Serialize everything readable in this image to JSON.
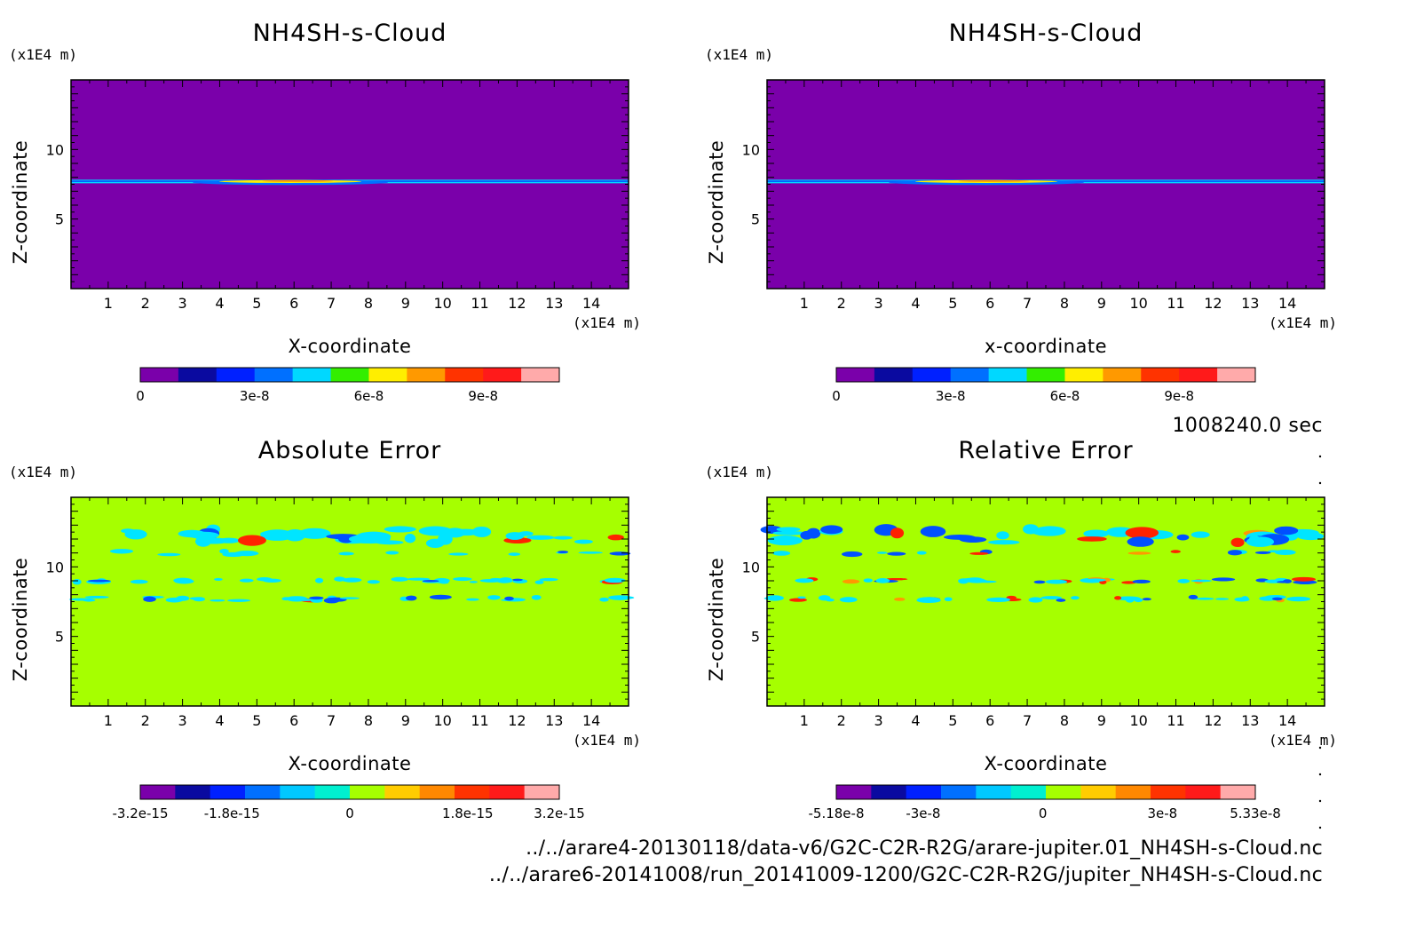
{
  "time_label": "1008240.0 sec",
  "footer": {
    "line1": "../../arare4-20130118/data-v6/G2C-C2R-R2G/arare-jupiter.01_NH4SH-s-Cloud.nc",
    "line2": "../../arare6-20141008/run_20141009-1200/G2C-C2R-R2G/jupiter_NH4SH-s-Cloud.nc"
  },
  "colors": {
    "base_purple": "#7a00aa",
    "base_green": "#a6ff00",
    "cyan": "#00e5ff",
    "blue": "#0050ff",
    "red": "#ff2200",
    "orange": "#ff9900"
  },
  "chart_data": [
    {
      "type": "heatmap",
      "title": "NH4SH-s-Cloud",
      "xlabel": "X-coordinate",
      "ylabel": "Z-coordinate",
      "x_unit": "(x1E4 m)",
      "y_unit": "(x1E4 m)",
      "xlim": [
        0,
        15
      ],
      "ylim": [
        0,
        15
      ],
      "x_ticks": [
        1,
        2,
        3,
        4,
        5,
        6,
        7,
        8,
        9,
        10,
        11,
        12,
        13,
        14
      ],
      "y_ticks": [
        5,
        10
      ],
      "layer_z": 7.7,
      "colorbar": {
        "min": 0,
        "max": 1.1e-07,
        "colors": [
          "#7a00aa",
          "#0a0aa0",
          "#0020ff",
          "#0070ff",
          "#00d8ff",
          "#33ee00",
          "#ffee00",
          "#ff9900",
          "#ff3300",
          "#ff1a1a",
          "#ffaaaa"
        ],
        "labels": [
          "0",
          "3e-8",
          "6e-8",
          "9e-8"
        ],
        "label_values": [
          0,
          3e-08,
          6e-08,
          9e-08
        ]
      }
    },
    {
      "type": "heatmap",
      "title": "NH4SH-s-Cloud",
      "xlabel": "x-coordinate",
      "ylabel": "Z-coordinate",
      "x_unit": "(x1E4 m)",
      "y_unit": "(x1E4 m)",
      "xlim": [
        0,
        15
      ],
      "ylim": [
        0,
        15
      ],
      "x_ticks": [
        1,
        2,
        3,
        4,
        5,
        6,
        7,
        8,
        9,
        10,
        11,
        12,
        13,
        14
      ],
      "y_ticks": [
        5,
        10
      ],
      "layer_z": 7.7,
      "colorbar": {
        "min": 0,
        "max": 1.1e-07,
        "colors": [
          "#7a00aa",
          "#0a0aa0",
          "#0020ff",
          "#0070ff",
          "#00d8ff",
          "#33ee00",
          "#ffee00",
          "#ff9900",
          "#ff3300",
          "#ff1a1a",
          "#ffaaaa"
        ],
        "labels": [
          "0",
          "3e-8",
          "6e-8",
          "9e-8"
        ],
        "label_values": [
          0,
          3e-08,
          6e-08,
          9e-08
        ]
      }
    },
    {
      "type": "heatmap",
      "title": "Absolute Error",
      "xlabel": "X-coordinate",
      "ylabel": "Z-coordinate",
      "x_unit": "(x1E4 m)",
      "y_unit": "(x1E4 m)",
      "xlim": [
        0,
        15
      ],
      "ylim": [
        0,
        15
      ],
      "x_ticks": [
        1,
        2,
        3,
        4,
        5,
        6,
        7,
        8,
        9,
        10,
        11,
        12,
        13,
        14
      ],
      "y_ticks": [
        5,
        10
      ],
      "error_bands_z": [
        12.2,
        11.0,
        9.0,
        7.7
      ],
      "colorbar": {
        "min": -3.2e-15,
        "max": 3.2e-15,
        "colors": [
          "#7a00aa",
          "#0a0aa0",
          "#0020ff",
          "#0070ff",
          "#00c8ff",
          "#00f0d0",
          "#a6ff00",
          "#ffcc00",
          "#ff8800",
          "#ff3300",
          "#ff1a1a",
          "#ffaaaa"
        ],
        "labels": [
          "-3.2e-15",
          "-1.8e-15",
          "0",
          "1.8e-15",
          "3.2e-15"
        ],
        "label_values": [
          -3.2e-15,
          -1.8e-15,
          0,
          1.8e-15,
          3.2e-15
        ]
      }
    },
    {
      "type": "heatmap",
      "title": "Relative Error",
      "xlabel": "X-coordinate",
      "ylabel": "Z-coordinate",
      "x_unit": "(x1E4 m)",
      "y_unit": "(x1E4 m)",
      "xlim": [
        0,
        15
      ],
      "ylim": [
        0,
        15
      ],
      "x_ticks": [
        1,
        2,
        3,
        4,
        5,
        6,
        7,
        8,
        9,
        10,
        11,
        12,
        13,
        14
      ],
      "y_ticks": [
        5,
        10
      ],
      "error_bands_z": [
        12.2,
        11.0,
        9.0,
        7.7
      ],
      "colorbar": {
        "min": -5.18e-08,
        "max": 5.33e-08,
        "colors": [
          "#7a00aa",
          "#0a0aa0",
          "#0020ff",
          "#0070ff",
          "#00c8ff",
          "#00f0d0",
          "#a6ff00",
          "#ffcc00",
          "#ff8800",
          "#ff3300",
          "#ff1a1a",
          "#ffaaaa"
        ],
        "labels": [
          "-5.18e-8",
          "-3e-8",
          "0",
          "3e-8",
          "5.33e-8"
        ],
        "label_values": [
          -5.18e-08,
          -3e-08,
          0,
          3e-08,
          5.33e-08
        ]
      }
    }
  ]
}
